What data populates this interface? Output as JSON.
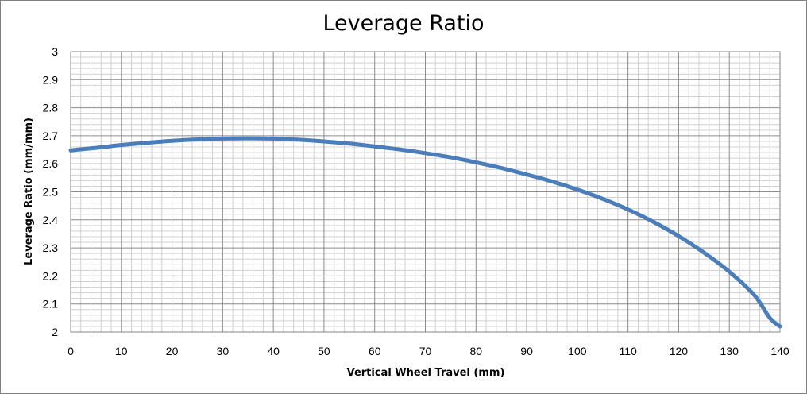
{
  "chart_data": {
    "type": "line",
    "title": "Leverage Ratio",
    "xlabel": "Vertical Wheel Travel (mm)",
    "ylabel": "Leverage Ratio (mm/mm)",
    "xlim": [
      0,
      140
    ],
    "ylim": [
      2,
      3
    ],
    "x_ticks": [
      0,
      10,
      20,
      30,
      40,
      50,
      60,
      70,
      80,
      90,
      100,
      110,
      120,
      130,
      140
    ],
    "y_ticks": [
      2,
      2.1,
      2.2,
      2.3,
      2.4,
      2.5,
      2.6,
      2.7,
      2.8,
      2.9,
      3
    ],
    "y_tick_labels": [
      "2",
      "2.1",
      "2.2",
      "2.3",
      "2.4",
      "2.5",
      "2.6",
      "2.7",
      "2.8",
      "2.9",
      "3"
    ],
    "grid": true,
    "legend": false,
    "series": [
      {
        "color": "#4a7ebb",
        "x": [
          0,
          5,
          10,
          15,
          20,
          25,
          30,
          35,
          40,
          45,
          50,
          55,
          60,
          65,
          70,
          75,
          80,
          85,
          90,
          95,
          100,
          105,
          110,
          115,
          120,
          125,
          130,
          135,
          138,
          140
        ],
        "y": [
          2.648,
          2.657,
          2.667,
          2.675,
          2.682,
          2.687,
          2.69,
          2.691,
          2.69,
          2.686,
          2.68,
          2.672,
          2.662,
          2.651,
          2.638,
          2.623,
          2.605,
          2.585,
          2.562,
          2.537,
          2.508,
          2.475,
          2.437,
          2.393,
          2.342,
          2.283,
          2.215,
          2.13,
          2.05,
          2.02
        ]
      }
    ]
  }
}
